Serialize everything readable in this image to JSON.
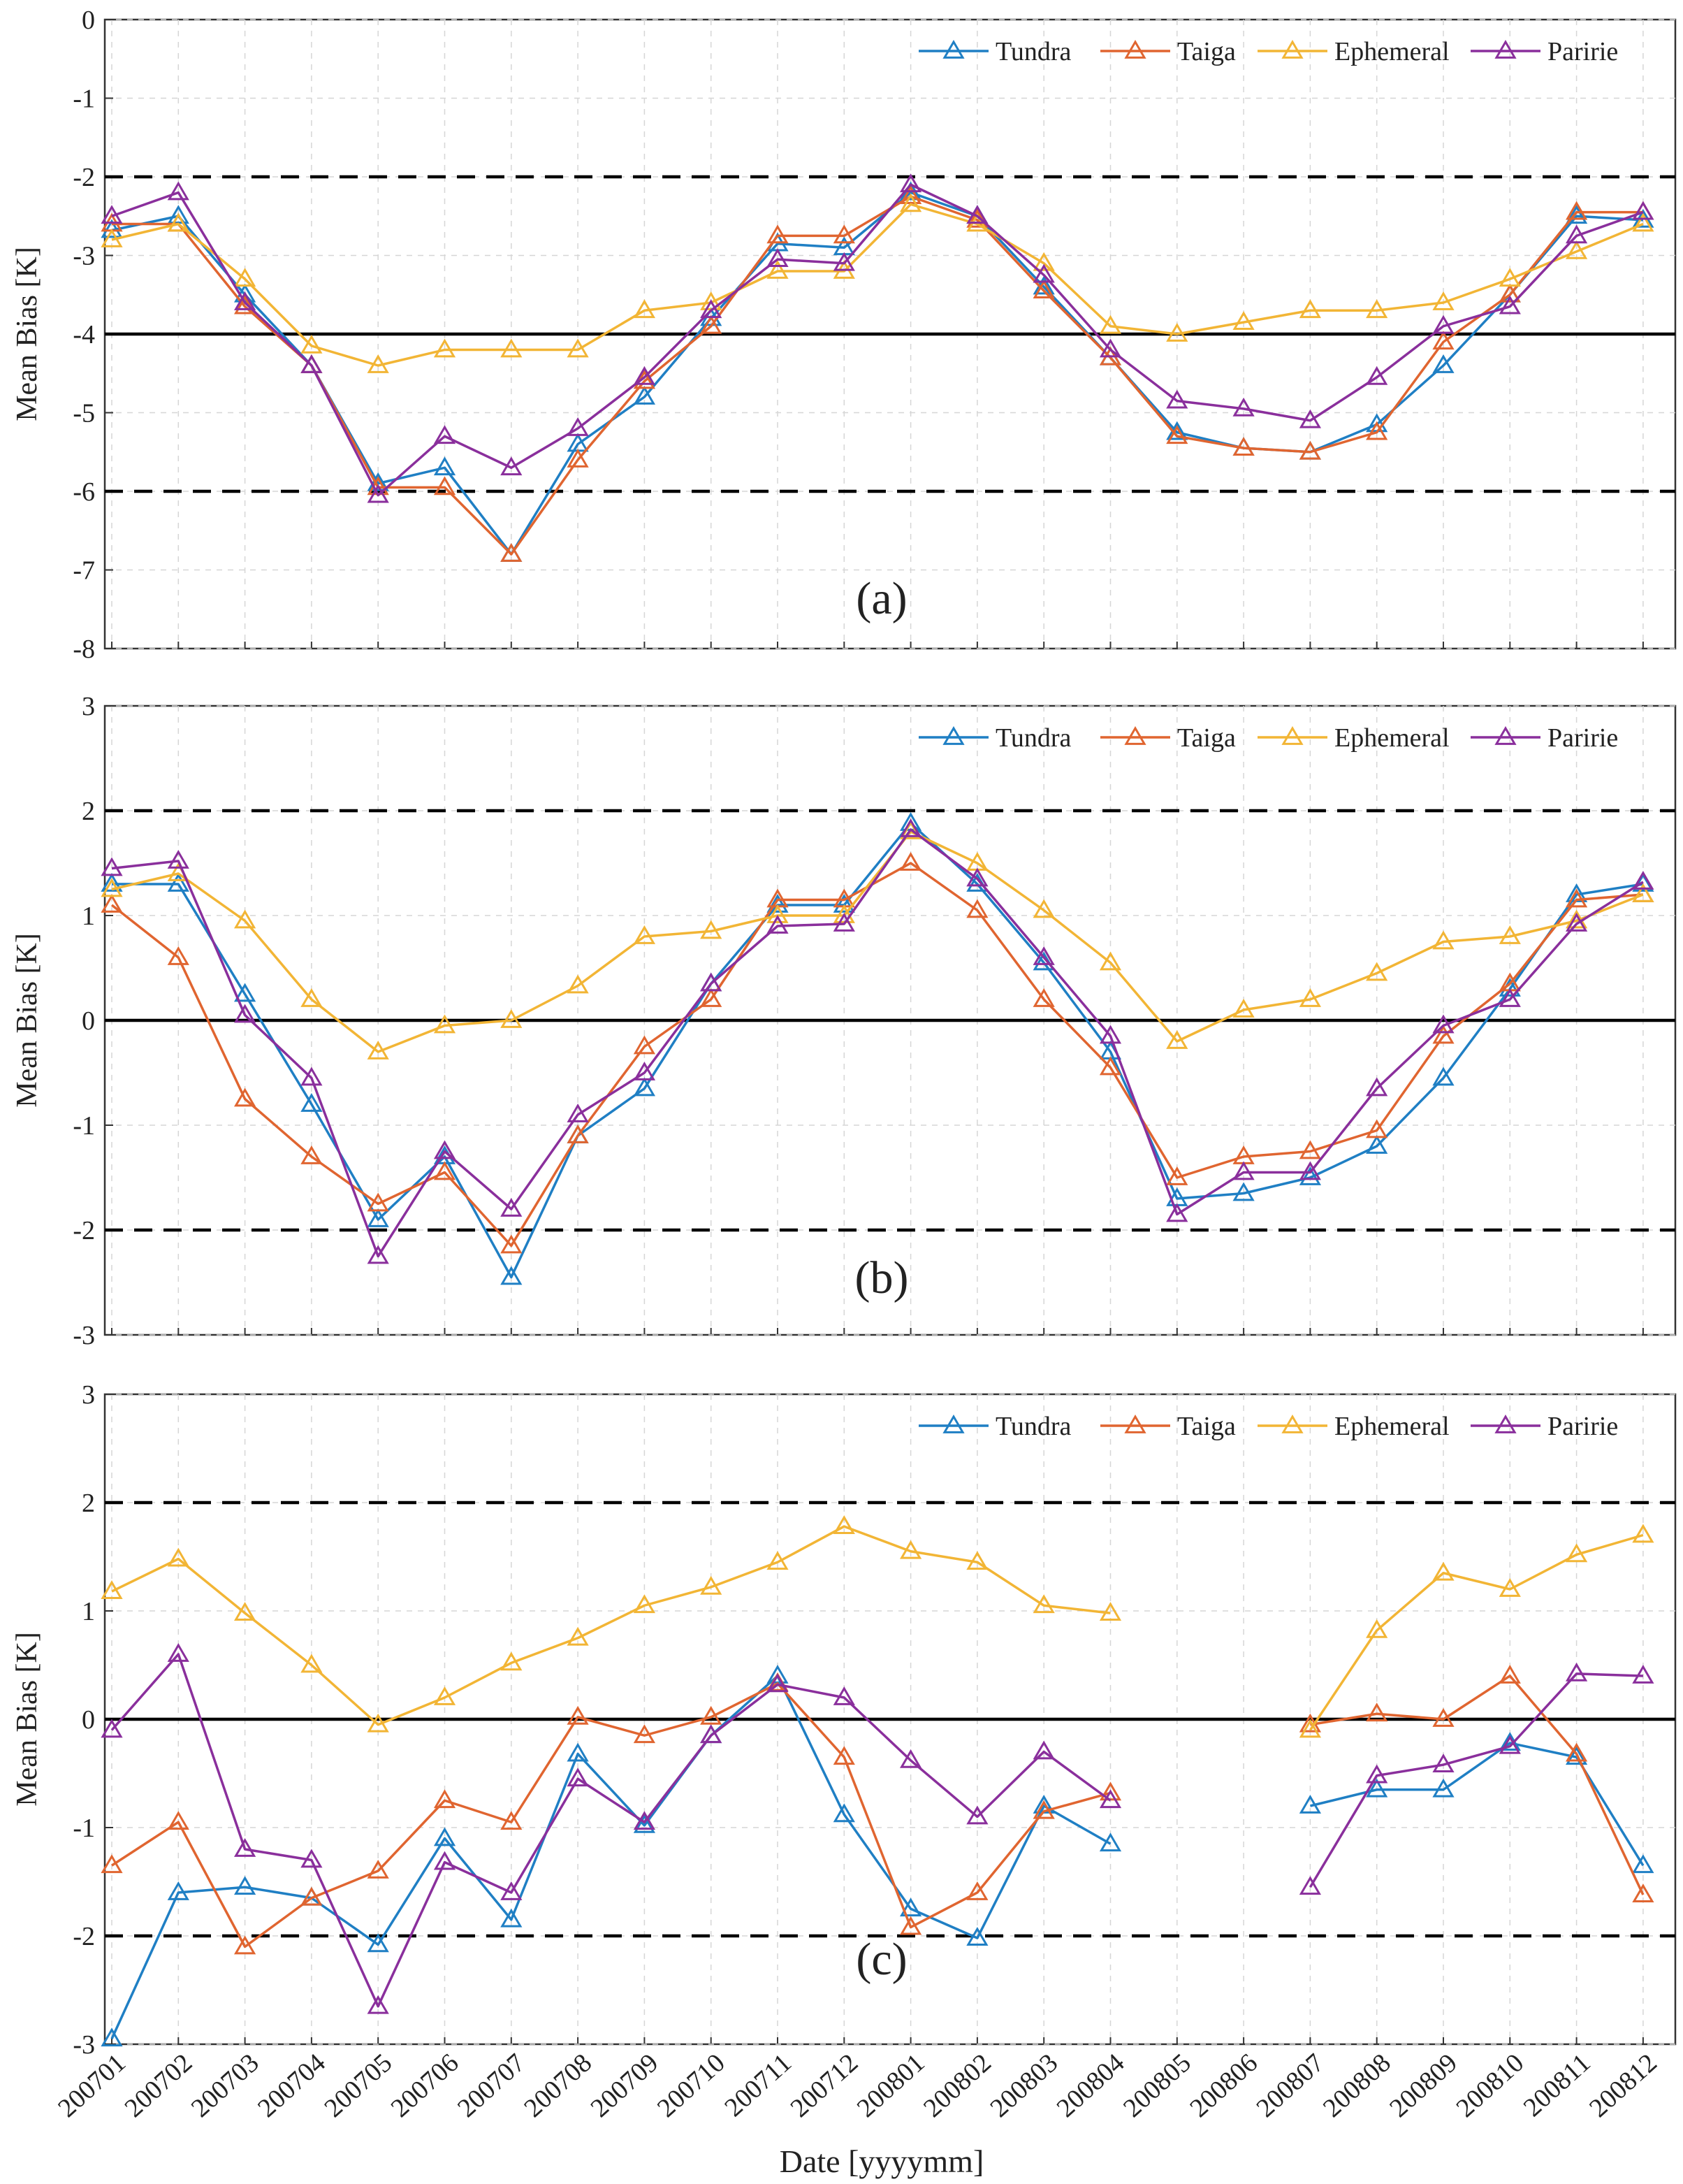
{
  "chart_data": [
    {
      "type": "line",
      "annotation": "(a)",
      "ylabel": "Mean Bias [K]",
      "xlabel": "",
      "ylim": [
        -8,
        0
      ],
      "yticks": [
        0,
        -1,
        -2,
        -3,
        -4,
        -5,
        -6,
        -7,
        -8
      ],
      "ytick_labels": [
        "0",
        "-1",
        "-2",
        "-3",
        "-4",
        "-5",
        "-6",
        "-7",
        "-8"
      ],
      "grid": true,
      "legend_position": "top-right",
      "reference_lines": {
        "solid": -4,
        "dashed": [
          -2,
          -6
        ]
      },
      "categories": [
        "200701",
        "200702",
        "200703",
        "200704",
        "200705",
        "200706",
        "200707",
        "200708",
        "200709",
        "200710",
        "200711",
        "200712",
        "200801",
        "200802",
        "200803",
        "200804",
        "200805",
        "200806",
        "200807",
        "200808",
        "200809",
        "200810",
        "200811",
        "200812"
      ],
      "series": [
        {
          "name": "Tundra",
          "values": [
            -2.68,
            -2.5,
            -3.5,
            -4.4,
            -5.9,
            -5.7,
            -6.8,
            -5.4,
            -4.8,
            -3.8,
            -2.85,
            -2.9,
            -2.2,
            -2.5,
            -3.4,
            -4.3,
            -5.25,
            -5.45,
            -5.5,
            -5.15,
            -4.4,
            -3.5,
            -2.5,
            -2.55
          ]
        },
        {
          "name": "Taiga",
          "values": [
            -2.6,
            -2.6,
            -3.65,
            -4.4,
            -5.95,
            -5.95,
            -6.8,
            -5.6,
            -4.6,
            -3.9,
            -2.75,
            -2.75,
            -2.25,
            -2.55,
            -3.45,
            -4.3,
            -5.3,
            -5.45,
            -5.5,
            -5.25,
            -4.1,
            -3.5,
            -2.45,
            -2.45
          ]
        },
        {
          "name": "Ephemeral",
          "values": [
            -2.8,
            -2.6,
            -3.3,
            -4.15,
            -4.4,
            -4.2,
            -4.2,
            -4.2,
            -3.7,
            -3.6,
            -3.2,
            -3.2,
            -2.35,
            -2.6,
            -3.1,
            -3.9,
            -4.0,
            -3.85,
            -3.7,
            -3.7,
            -3.6,
            -3.3,
            -2.95,
            -2.6
          ]
        },
        {
          "name": "Paririe",
          "values": [
            -2.5,
            -2.2,
            -3.6,
            -4.4,
            -6.05,
            -5.3,
            -5.7,
            -5.2,
            -4.55,
            -3.7,
            -3.05,
            -3.1,
            -2.1,
            -2.5,
            -3.25,
            -4.2,
            -4.85,
            -4.95,
            -5.1,
            -4.55,
            -3.9,
            -3.65,
            -2.75,
            -2.45
          ]
        }
      ]
    },
    {
      "type": "line",
      "annotation": "(b)",
      "ylabel": "Mean Bias [K]",
      "xlabel": "",
      "ylim": [
        -3,
        3
      ],
      "yticks": [
        3,
        2,
        1,
        0,
        -1,
        -2,
        -3
      ],
      "ytick_labels": [
        "3",
        "2",
        "1",
        "0",
        "-1",
        "-2",
        "-3"
      ],
      "grid": true,
      "legend_position": "top-right",
      "reference_lines": {
        "solid": 0,
        "dashed": [
          2,
          -2
        ]
      },
      "categories": [
        "200701",
        "200702",
        "200703",
        "200704",
        "200705",
        "200706",
        "200707",
        "200708",
        "200709",
        "200710",
        "200711",
        "200712",
        "200801",
        "200802",
        "200803",
        "200804",
        "200805",
        "200806",
        "200807",
        "200808",
        "200809",
        "200810",
        "200811",
        "200812"
      ],
      "series": [
        {
          "name": "Tundra",
          "values": [
            1.3,
            1.3,
            0.25,
            -0.8,
            -1.9,
            -1.3,
            -2.45,
            -1.1,
            -0.65,
            0.35,
            1.1,
            1.1,
            1.88,
            1.3,
            0.55,
            -0.3,
            -1.7,
            -1.65,
            -1.5,
            -1.2,
            -0.55,
            0.3,
            1.2,
            1.3
          ]
        },
        {
          "name": "Taiga",
          "values": [
            1.1,
            0.6,
            -0.75,
            -1.3,
            -1.75,
            -1.45,
            -2.15,
            -1.1,
            -0.25,
            0.2,
            1.15,
            1.15,
            1.5,
            1.05,
            0.2,
            -0.45,
            -1.5,
            -1.3,
            -1.25,
            -1.05,
            -0.15,
            0.35,
            1.15,
            1.2
          ]
        },
        {
          "name": "Ephemeral",
          "values": [
            1.25,
            1.4,
            0.95,
            0.2,
            -0.3,
            -0.05,
            0.0,
            0.33,
            0.8,
            0.85,
            1.0,
            1.0,
            1.8,
            1.5,
            1.05,
            0.55,
            -0.2,
            0.1,
            0.2,
            0.45,
            0.75,
            0.8,
            0.95,
            1.2
          ]
        },
        {
          "name": "Paririe",
          "values": [
            1.45,
            1.52,
            0.05,
            -0.55,
            -2.25,
            -1.25,
            -1.8,
            -0.9,
            -0.5,
            0.35,
            0.9,
            0.92,
            1.82,
            1.35,
            0.6,
            -0.15,
            -1.85,
            -1.45,
            -1.45,
            -0.65,
            -0.05,
            0.2,
            0.92,
            1.32
          ]
        }
      ]
    },
    {
      "type": "line",
      "annotation": "(c)",
      "ylabel": "Mean Bias [K]",
      "xlabel": "Date [yyyymm]",
      "ylim": [
        -3,
        3
      ],
      "yticks": [
        3,
        2,
        1,
        0,
        -1,
        -2,
        -3
      ],
      "ytick_labels": [
        "3",
        "2",
        "1",
        "0",
        "-1",
        "-2",
        "-3"
      ],
      "grid": true,
      "legend_position": "top-right",
      "reference_lines": {
        "solid": 0,
        "dashed": [
          2,
          -2
        ]
      },
      "categories": [
        "200701",
        "200702",
        "200703",
        "200704",
        "200705",
        "200706",
        "200707",
        "200708",
        "200709",
        "200710",
        "200711",
        "200712",
        "200801",
        "200802",
        "200803",
        "200804",
        "200805",
        "200806",
        "200807",
        "200808",
        "200809",
        "200810",
        "200811",
        "200812"
      ],
      "series": [
        {
          "name": "Tundra",
          "values": [
            -2.95,
            -1.6,
            -1.55,
            -1.65,
            -2.08,
            -1.1,
            -1.85,
            -0.32,
            -0.98,
            -0.15,
            0.4,
            -0.88,
            -1.75,
            -2.02,
            -0.8,
            -1.15,
            null,
            null,
            -0.8,
            -0.65,
            -0.65,
            -0.22,
            -0.35,
            -1.35
          ]
        },
        {
          "name": "Taiga",
          "values": [
            -1.35,
            -0.95,
            -2.1,
            -1.65,
            -1.4,
            -0.75,
            -0.95,
            0.02,
            -0.15,
            0.02,
            0.33,
            -0.35,
            -1.92,
            -1.6,
            -0.85,
            -0.68,
            null,
            null,
            -0.05,
            0.05,
            0.0,
            0.4,
            -0.32,
            -1.62
          ]
        },
        {
          "name": "Ephemeral",
          "values": [
            1.18,
            1.48,
            0.98,
            0.5,
            -0.05,
            0.2,
            0.52,
            0.75,
            1.05,
            1.22,
            1.45,
            1.78,
            1.55,
            1.45,
            1.05,
            0.98,
            null,
            null,
            -0.1,
            0.82,
            1.35,
            1.2,
            1.52,
            1.7
          ]
        },
        {
          "name": "Paririe",
          "values": [
            -0.1,
            0.6,
            -1.2,
            -1.3,
            -2.65,
            -1.32,
            -1.6,
            -0.55,
            -0.95,
            -0.15,
            0.32,
            0.2,
            -0.38,
            -0.9,
            -0.3,
            -0.75,
            null,
            null,
            -1.55,
            -0.52,
            -0.42,
            -0.25,
            0.42,
            0.4
          ]
        }
      ]
    }
  ],
  "series_colors": {
    "Tundra": "#1f7fc4",
    "Taiga": "#e06530",
    "Ephemeral": "#f2b535",
    "Paririe": "#8a2f9c"
  }
}
